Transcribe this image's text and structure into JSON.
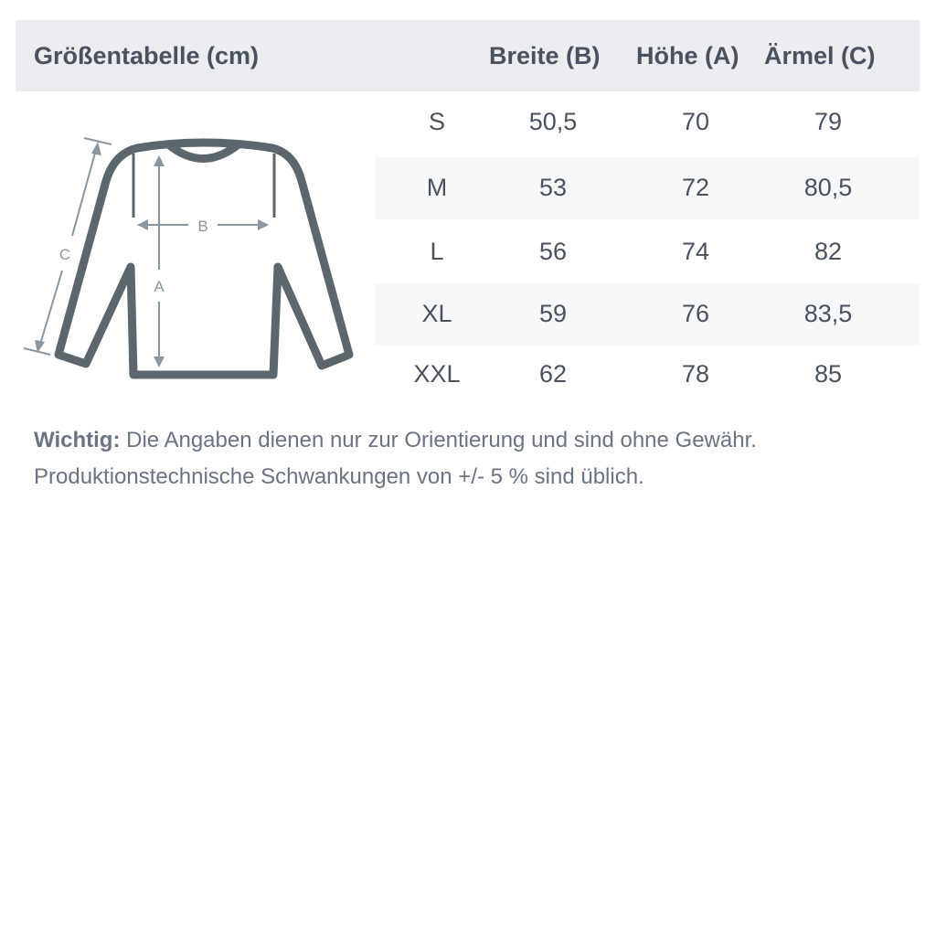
{
  "title": "Größentabelle (cm)",
  "columns": [
    "Breite (B)",
    "Höhe (A)",
    "Ärmel (C)"
  ],
  "rows": [
    {
      "size": "S",
      "b": "50,5",
      "a": "70",
      "c": "79"
    },
    {
      "size": "M",
      "b": "53",
      "a": "72",
      "c": "80,5"
    },
    {
      "size": "L",
      "b": "56",
      "a": "74",
      "c": "82"
    },
    {
      "size": "XL",
      "b": "59",
      "a": "76",
      "c": "83,5"
    },
    {
      "size": "XXL",
      "b": "62",
      "a": "78",
      "c": "85"
    }
  ],
  "diagram": {
    "label_a": "A",
    "label_b": "B",
    "label_c": "C",
    "outline_color": "#5b676d",
    "arrow_color": "#8a96a0"
  },
  "note": {
    "bold": "Wichtig:",
    "line1": " Die Angaben dienen nur zur Orientierung und sind ohne Gewähr.",
    "line2": "Produktionstechnische Schwankungen von +/- 5 % sind üblich."
  }
}
